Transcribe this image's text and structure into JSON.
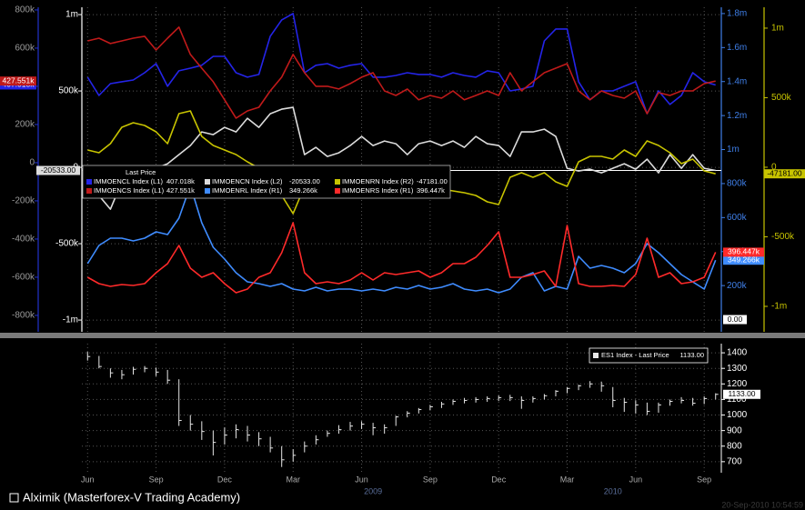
{
  "chart_data": [
    {
      "type": "line",
      "grid": true,
      "legend_title": "Last Price",
      "axes": [
        {
          "side": "left",
          "color": "#9a9a9a",
          "line_color": "#2233cc",
          "lim": [
            -886000,
            814000
          ],
          "ticks": [
            {
              "value": -800000,
              "label": "-800k"
            },
            {
              "value": -600000,
              "label": "-600k"
            },
            {
              "value": -400000,
              "label": "-400k"
            },
            {
              "value": -200000,
              "label": "-200k"
            },
            0,
            {
              "value": 200000,
              "label": "200k"
            },
            {
              "value": 400000,
              "label": "400k"
            },
            {
              "value": 600000,
              "label": "600k"
            },
            {
              "value": 800000,
              "label": "800k"
            }
          ]
        },
        {
          "side": "left",
          "color": "#ffffff",
          "line_color": "#ffffff",
          "lim": [
            -1077000,
            1048000
          ],
          "ticks": [
            {
              "value": -1000000,
              "label": "-1m"
            },
            {
              "value": -500000,
              "label": "-500k"
            },
            0,
            {
              "value": 500000,
              "label": "500k"
            },
            {
              "value": 1000000,
              "label": "1m"
            }
          ]
        },
        {
          "side": "right",
          "color": "#3f7fe8",
          "line_color": "#3f7fe8",
          "lim": [
            -72000,
            1837000
          ],
          "ticks": [
            {
              "value": 200000,
              "label": "200k"
            },
            {
              "value": 400000,
              "label": "400k"
            },
            {
              "value": 600000,
              "label": "600k"
            },
            {
              "value": 800000,
              "label": "800k"
            },
            {
              "value": 1000000,
              "label": "1m"
            },
            {
              "value": 1200000,
              "label": "1.2m"
            },
            {
              "value": 1400000,
              "label": "1.4m"
            },
            {
              "value": 1600000,
              "label": "1.6m"
            },
            {
              "value": 1800000,
              "label": "1.8m"
            }
          ],
          "marker": {
            "value": 0,
            "label": "0.00"
          }
        },
        {
          "side": "right",
          "color": "#c8c400",
          "line_color": "#c8c400",
          "lim": [
            -1183000,
            1150000
          ],
          "ticks": [
            {
              "value": -1000000,
              "label": "-1m"
            },
            {
              "value": -500000,
              "label": "-500k"
            },
            0,
            {
              "value": 500000,
              "label": "500k"
            },
            {
              "value": 1000000,
              "label": "1m"
            }
          ]
        }
      ],
      "series": [
        {
          "name": "IMMOENCL Index (L1)",
          "axis": 0,
          "color": "#2424e8",
          "last_label": "407.018k",
          "values": [
            448000,
            352000,
            414000,
            424000,
            433000,
            471000,
            519000,
            400000,
            481000,
            495000,
            510000,
            557000,
            557000,
            471000,
            448000,
            462000,
            662000,
            748000,
            781000,
            471000,
            510000,
            519000,
            495000,
            510000,
            519000,
            448000,
            448000,
            457000,
            471000,
            462000,
            462000,
            448000,
            471000,
            457000,
            448000,
            481000,
            471000,
            376000,
            386000,
            400000,
            638000,
            700000,
            700000,
            424000,
            329000,
            376000,
            376000,
            400000,
            424000,
            257000,
            376000,
            305000,
            352000,
            471000,
            424000,
            407018
          ]
        },
        {
          "name": "IMMOENCN Index  (L2)",
          "axis": 1,
          "color": "#dcdcdc",
          "last_label": "-20533.00",
          "values": [
            -125000,
            -184500,
            -273800,
            -95200,
            -65500,
            -35700,
            -5950,
            23800,
            83300,
            142900,
            232100,
            214300,
            261900,
            232100,
            321400,
            261900,
            351200,
            381000,
            392900,
            83300,
            131000,
            71400,
            95200,
            142900,
            202400,
            142900,
            172600,
            154800,
            83300,
            154800,
            172600,
            142900,
            172600,
            131000,
            202400,
            154800,
            142900,
            71400,
            232100,
            232100,
            250000,
            202400,
            -5950,
            -23800,
            -11900,
            -35700,
            -5950,
            23800,
            -11900,
            53600,
            -35700,
            83300,
            -5950,
            83300,
            -5950,
            -20533
          ]
        },
        {
          "name": "IMMOENRN Index  (R2)",
          "axis": 3,
          "color": "#c8c400",
          "last_label": "-47181.00",
          "values": [
            124200,
            104600,
            169900,
            287600,
            320300,
            300700,
            254900,
            169900,
            385600,
            405200,
            222200,
            156900,
            124200,
            91500,
            39200,
            -6500,
            -71900,
            -202600,
            -333300,
            -137300,
            -104600,
            -91500,
            -104600,
            -117600,
            -137300,
            -104600,
            -137300,
            -124200,
            -156900,
            -169900,
            -137300,
            -156900,
            -169900,
            -183000,
            -202600,
            -248400,
            -267900,
            -71900,
            -39200,
            -71900,
            -39200,
            -104600,
            -137300,
            39200,
            78400,
            78400,
            58800,
            124200,
            78400,
            189500,
            156900,
            104600,
            26100,
            58800,
            -26100,
            -47181
          ]
        },
        {
          "name": "IMMOENCS Index  (L1)",
          "axis": 0,
          "color": "#c01a1a",
          "last_label": "427.551k",
          "values": [
            638000,
            652000,
            624000,
            638000,
            652000,
            662000,
            590000,
            652000,
            710000,
            567000,
            495000,
            424000,
            329000,
            233000,
            271000,
            290000,
            376000,
            448000,
            567000,
            471000,
            400000,
            400000,
            386000,
            414000,
            448000,
            471000,
            376000,
            352000,
            386000,
            329000,
            352000,
            338000,
            376000,
            329000,
            352000,
            376000,
            352000,
            471000,
            376000,
            424000,
            471000,
            495000,
            519000,
            376000,
            329000,
            376000,
            352000,
            338000,
            376000,
            257000,
            367000,
            352000,
            376000,
            376000,
            414000,
            427551
          ]
        },
        {
          "name": "IMMOENRL Index  (R1)",
          "axis": 2,
          "color": "#3f8cff",
          "last_label": "349.266k",
          "values": [
            328900,
            435900,
            478700,
            478700,
            462600,
            478700,
            516100,
            500000,
            596300,
            788400,
            569600,
            425200,
            355600,
            275400,
            221900,
            211200,
            195200,
            211200,
            179200,
            168500,
            189900,
            168500,
            179200,
            179200,
            168500,
            179200,
            168500,
            189900,
            179200,
            200500,
            179200,
            189900,
            211200,
            179200,
            168500,
            179200,
            157800,
            179200,
            248700,
            275400,
            168500,
            195200,
            179200,
            371700,
            302200,
            318200,
            302200,
            275400,
            328900,
            446600,
            393100,
            328900,
            264700,
            221900,
            179200,
            349266
          ]
        },
        {
          "name": "IMMOENRS Index  (R1)",
          "axis": 2,
          "color": "#ff2a2a",
          "last_label": "396.447k",
          "values": [
            248700,
            211200,
            195200,
            205900,
            200500,
            211200,
            275400,
            328900,
            435900,
            302200,
            248700,
            275400,
            211200,
            157800,
            179200,
            248700,
            275400,
            393100,
            569600,
            275400,
            211200,
            221900,
            211200,
            232600,
            275400,
            232600,
            275400,
            264700,
            275400,
            286100,
            248700,
            275400,
            328900,
            328900,
            366300,
            435900,
            516100,
            248700,
            248700,
            264700,
            286100,
            195200,
            553500,
            211200,
            195200,
            195200,
            200500,
            195200,
            264700,
            478700,
            248700,
            275400,
            211200,
            221900,
            248700,
            396447
          ]
        }
      ]
    },
    {
      "type": "hlc",
      "grid": true,
      "ylim": [
        629,
        1459
      ],
      "yticks": [
        700,
        800,
        900,
        1000,
        1100,
        1200,
        1300,
        1400
      ],
      "categories": [
        "Jun",
        null,
        null,
        null,
        null,
        null,
        "Sep",
        null,
        null,
        null,
        null,
        null,
        "Dec",
        null,
        null,
        null,
        null,
        null,
        "Mar",
        null,
        null,
        null,
        null,
        null,
        "Jun",
        null,
        null,
        null,
        null,
        null,
        "Sep",
        null,
        null,
        null,
        null,
        null,
        "Dec",
        null,
        null,
        null,
        null,
        null,
        "Mar",
        null,
        null,
        null,
        null,
        null,
        "Jun",
        null,
        null,
        null,
        null,
        null,
        "Sep",
        null
      ],
      "categories_year": [
        null,
        null,
        null,
        null,
        null,
        null,
        null,
        null,
        null,
        null,
        null,
        null,
        null,
        null,
        null,
        null,
        null,
        null,
        null,
        null,
        null,
        null,
        null,
        null,
        null,
        "2009",
        null,
        null,
        null,
        null,
        null,
        null,
        null,
        null,
        null,
        null,
        null,
        null,
        null,
        null,
        null,
        null,
        null,
        null,
        null,
        null,
        "2010",
        null,
        null,
        null,
        null,
        null,
        null,
        null,
        null,
        null
      ],
      "series": [
        {
          "name": "ES1 Index - Last Price",
          "color": "#e6e6e6",
          "last_label": "1133.00",
          "high": [
            1406,
            1380,
            1300,
            1290,
            1310,
            1315,
            1305,
            1290,
            1230,
            1000,
            960,
            900,
            920,
            940,
            930,
            890,
            860,
            800,
            780,
            830,
            870,
            900,
            935,
            956,
            960,
            950,
            940,
            995,
            1025,
            1045,
            1065,
            1085,
            1100,
            1110,
            1115,
            1120,
            1125,
            1130,
            1120,
            1120,
            1135,
            1160,
            1180,
            1195,
            1218,
            1215,
            1180,
            1110,
            1095,
            1080,
            1080,
            1100,
            1115,
            1110,
            1120,
            1140
          ],
          "low": [
            1350,
            1300,
            1240,
            1230,
            1260,
            1275,
            1250,
            1200,
            930,
            900,
            840,
            740,
            810,
            850,
            830,
            800,
            760,
            666,
            700,
            760,
            810,
            860,
            880,
            900,
            910,
            870,
            880,
            930,
            985,
            1010,
            1030,
            1045,
            1065,
            1075,
            1080,
            1085,
            1090,
            1090,
            1040,
            1080,
            1100,
            1120,
            1140,
            1160,
            1175,
            1150,
            1050,
            1020,
            1010,
            1000,
            1015,
            1060,
            1075,
            1060,
            1070,
            1100
          ],
          "close": [
            1376,
            1312,
            1271,
            1259,
            1294,
            1300,
            1276,
            1224,
            965,
            941,
            894,
            824,
            871,
            906,
            871,
            847,
            788,
            712,
            741,
            800,
            841,
            882,
            906,
            929,
            941,
            918,
            918,
            988,
            1012,
            1035,
            1053,
            1071,
            1088,
            1094,
            1100,
            1106,
            1112,
            1112,
            1094,
            1106,
            1124,
            1153,
            1171,
            1188,
            1200,
            1188,
            1094,
            1082,
            1065,
            1024,
            1065,
            1088,
            1094,
            1076,
            1106,
            1133
          ]
        }
      ]
    }
  ],
  "footer": {
    "author": "Alximik (Masterforex-V Trading Academy)",
    "timestamp": "20-Sep-2010 10:54:59"
  }
}
